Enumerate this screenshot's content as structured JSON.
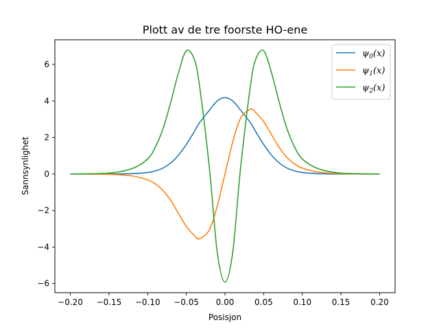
{
  "chart_data": {
    "type": "line",
    "title": "Plott av de tre foorste HO-ene",
    "xlabel": "Posisjon",
    "ylabel": "Sannsynlighet",
    "xlim": [
      -0.22,
      0.22
    ],
    "ylim": [
      -6.5,
      7.35
    ],
    "xticks": [
      -0.2,
      -0.15,
      -0.1,
      -0.05,
      0.0,
      0.05,
      0.1,
      0.15,
      0.2
    ],
    "xtick_labels": [
      "−0.20",
      "−0.15",
      "−0.10",
      "−0.05",
      "0.00",
      "0.05",
      "0.10",
      "0.15",
      "0.20"
    ],
    "yticks": [
      -6,
      -4,
      -2,
      0,
      2,
      4,
      6
    ],
    "ytick_labels": [
      "−6",
      "−4",
      "−2",
      "0",
      "2",
      "4",
      "6"
    ],
    "grid": false,
    "legend_position": "top-right",
    "x": [
      -0.2,
      -0.15,
      -0.12,
      -0.1,
      -0.09,
      -0.08,
      -0.07,
      -0.06,
      -0.05,
      -0.04,
      -0.033,
      -0.02,
      -0.01,
      0.0,
      0.01,
      0.02,
      0.033,
      0.04,
      0.05,
      0.06,
      0.07,
      0.08,
      0.09,
      0.1,
      0.12,
      0.15,
      0.2
    ],
    "series": [
      {
        "name": "ψ0(x)",
        "legend_main": "ψ",
        "legend_sub": "0",
        "legend_rest": "(x)",
        "color": "#1f77b4",
        "values": [
          0.0,
          0.0,
          0.02,
          0.08,
          0.17,
          0.33,
          0.61,
          1.04,
          1.62,
          2.3,
          2.8,
          3.5,
          4.0,
          4.18,
          4.0,
          3.5,
          2.8,
          2.3,
          1.62,
          1.04,
          0.61,
          0.33,
          0.17,
          0.08,
          0.02,
          0.0,
          0.0
        ]
      },
      {
        "name": "ψ1(x)",
        "legend_main": "ψ",
        "legend_sub": "1",
        "legend_rest": "(x)",
        "color": "#ff7f0e",
        "values": [
          0.0,
          -0.02,
          -0.11,
          -0.32,
          -0.55,
          -0.91,
          -1.46,
          -2.17,
          -2.87,
          -3.35,
          -3.55,
          -3.04,
          -1.75,
          0.0,
          1.75,
          3.04,
          3.55,
          3.35,
          2.87,
          2.17,
          1.46,
          0.91,
          0.55,
          0.32,
          0.11,
          0.02,
          0.0
        ]
      },
      {
        "name": "ψ2(x)",
        "legend_main": "ψ",
        "legend_sub": "2",
        "legend_rest": "(x)",
        "color": "#2ca02c",
        "values": [
          0.0,
          0.05,
          0.3,
          0.82,
          1.48,
          2.5,
          3.95,
          5.57,
          6.75,
          6.31,
          4.86,
          0.26,
          -4.29,
          -5.92,
          -4.29,
          0.26,
          4.86,
          6.31,
          6.75,
          5.57,
          3.95,
          2.5,
          1.48,
          0.82,
          0.3,
          0.05,
          0.0
        ]
      }
    ]
  }
}
